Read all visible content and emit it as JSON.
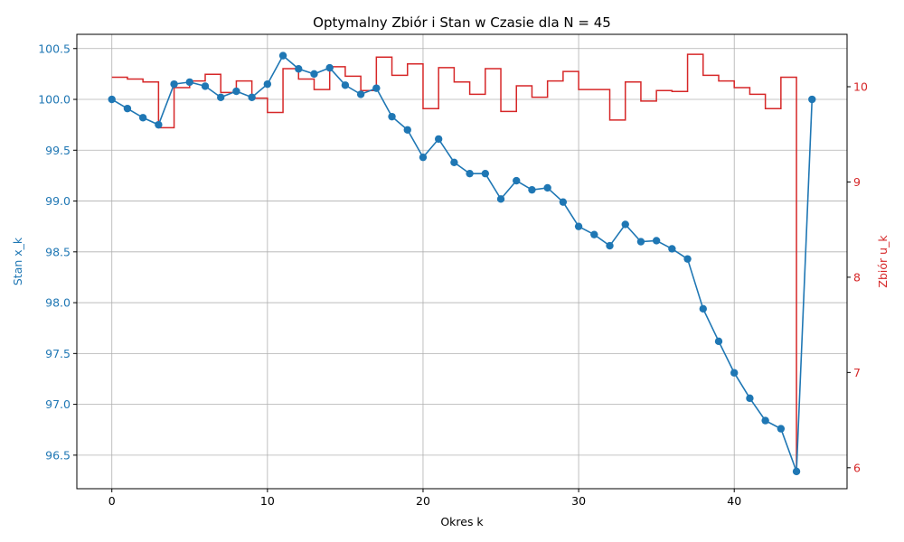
{
  "chart_data": {
    "type": "line",
    "title": "Optymalny Zbiór i Stan w Czasie dla N = 45",
    "xlabel": "Okres k",
    "ylabel_left": "Stan x_k",
    "ylabel_right": "Zbiór u_k",
    "xlim": [
      -2.25,
      47.25
    ],
    "ylim_left": [
      96.17,
      100.64
    ],
    "ylim_right": [
      5.78,
      10.55
    ],
    "grid": true,
    "x_ticks": [
      0,
      10,
      20,
      30,
      40
    ],
    "x_tick_labels": [
      "0",
      "10",
      "20",
      "30",
      "40"
    ],
    "y_left_ticks": [
      96.5,
      97.0,
      97.5,
      98.0,
      98.5,
      99.0,
      99.5,
      100.0,
      100.5
    ],
    "y_left_tick_labels": [
      "96.5",
      "97.0",
      "97.5",
      "98.0",
      "98.5",
      "99.0",
      "99.5",
      "100.0",
      "100.5"
    ],
    "y_right_ticks": [
      6,
      7,
      8,
      9,
      10
    ],
    "y_right_tick_labels": [
      "6",
      "7",
      "8",
      "9",
      "10"
    ],
    "colors": {
      "state": "#1f77b4",
      "harvest": "#d62728",
      "grid": "#b0b0b0",
      "text": "#000000"
    },
    "series": [
      {
        "axis": "left",
        "style": "line-markers",
        "x": [
          0,
          1,
          2,
          3,
          4,
          5,
          6,
          7,
          8,
          9,
          10,
          11,
          12,
          13,
          14,
          15,
          16,
          17,
          18,
          19,
          20,
          21,
          22,
          23,
          24,
          25,
          26,
          27,
          28,
          29,
          30,
          31,
          32,
          33,
          34,
          35,
          36,
          37,
          38,
          39,
          40,
          41,
          42,
          43,
          44,
          45
        ],
        "values": [
          100.0,
          99.91,
          99.82,
          99.75,
          100.15,
          100.17,
          100.13,
          100.02,
          100.08,
          100.02,
          100.15,
          100.43,
          100.3,
          100.25,
          100.31,
          100.14,
          100.05,
          100.11,
          99.83,
          99.7,
          99.43,
          99.61,
          99.38,
          99.27,
          99.27,
          99.02,
          99.2,
          99.11,
          99.13,
          98.99,
          98.75,
          98.67,
          98.56,
          98.77,
          98.6,
          98.61,
          98.53,
          98.43,
          97.94,
          97.62,
          97.31,
          97.06,
          96.84,
          96.76,
          96.34,
          100.0
        ]
      },
      {
        "axis": "right",
        "style": "step-post",
        "x": [
          0,
          1,
          2,
          3,
          4,
          5,
          6,
          7,
          8,
          9,
          10,
          11,
          12,
          13,
          14,
          15,
          16,
          17,
          18,
          19,
          20,
          21,
          22,
          23,
          24,
          25,
          26,
          27,
          28,
          29,
          30,
          31,
          32,
          33,
          34,
          35,
          36,
          37,
          38,
          39,
          40,
          41,
          42,
          43,
          44
        ],
        "values": [
          10.1,
          10.08,
          10.05,
          9.57,
          9.99,
          10.06,
          10.13,
          9.94,
          10.06,
          9.88,
          9.73,
          10.19,
          10.08,
          9.97,
          10.21,
          10.11,
          9.96,
          10.31,
          10.12,
          10.24,
          9.77,
          10.2,
          10.05,
          9.92,
          10.19,
          9.74,
          10.01,
          9.89,
          10.06,
          10.16,
          9.97,
          9.97,
          9.65,
          10.05,
          9.85,
          9.96,
          9.95,
          10.34,
          10.12,
          10.06,
          9.99,
          9.92,
          9.77,
          10.1,
          6.0
        ]
      }
    ]
  }
}
